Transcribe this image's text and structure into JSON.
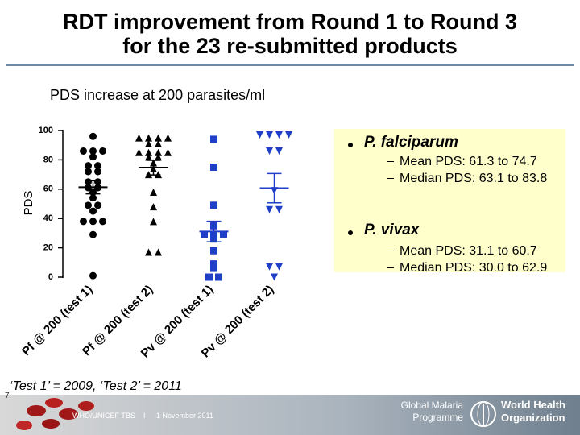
{
  "slide": {
    "title_lines": [
      "RDT improvement from Round 1 to Round 3",
      "for the 23 re-submitted products"
    ],
    "note": "‘Test 1’ = 2009, ‘Test 2’ = 2011",
    "bullets": [
      {
        "label": "P. falciparum",
        "items": [
          "Mean PDS: 61.3 to 74.7",
          "Median PDS: 63.1 to 83.8"
        ]
      },
      {
        "label": "P. vivax",
        "items": [
          "Mean PDS: 31.1 to 60.7",
          "Median PDS: 30.0 to 62.9"
        ]
      }
    ],
    "footer": {
      "page": "7",
      "event": "WHO/UNICEF TBS",
      "separator": "I",
      "date": "1 November 2011",
      "programme_lines": [
        "Global Malaria",
        "Programme"
      ],
      "org_lines": [
        "World Health",
        "Organization"
      ]
    }
  },
  "chart_data": {
    "type": "scatter",
    "title": "PDS increase at 200 parasites/ml",
    "ylabel": "PDS",
    "categories": [
      "Pf @ 200 (test 1)",
      "Pf @ 200 (test 2)",
      "Pv @ 200 (test 1)",
      "Pv @ 200 (test 2)"
    ],
    "series": [
      {
        "marker": "circle",
        "color": "#000000",
        "mean": 61.3,
        "error": 4.5,
        "values": [
          96,
          86,
          86,
          86,
          82,
          76,
          76,
          72,
          72,
          65,
          65,
          61,
          61,
          58,
          54,
          49,
          49,
          45,
          38,
          38,
          38,
          29,
          1
        ]
      },
      {
        "marker": "triangle",
        "color": "#000000",
        "mean": 74.7,
        "error": 5,
        "values": [
          95,
          95,
          95,
          95,
          91,
          91,
          85,
          85,
          85,
          85,
          82,
          82,
          78,
          74,
          70,
          70,
          58,
          48,
          38,
          17,
          17
        ]
      },
      {
        "marker": "square",
        "color": "#1f3fc8",
        "mean": 31.1,
        "error": 7,
        "values": [
          94,
          75,
          49,
          35,
          29,
          29,
          29,
          26,
          18,
          9,
          6,
          0,
          0
        ]
      },
      {
        "marker": "triangle-down",
        "color": "#1f3fc8",
        "mean": 60.7,
        "error": 10,
        "values": [
          97,
          97,
          97,
          97,
          86,
          86,
          59,
          46,
          46,
          7,
          7,
          0
        ]
      }
    ],
    "ylim": [
      0,
      100
    ],
    "yticks": [
      0,
      20,
      40,
      60,
      80,
      100
    ]
  }
}
